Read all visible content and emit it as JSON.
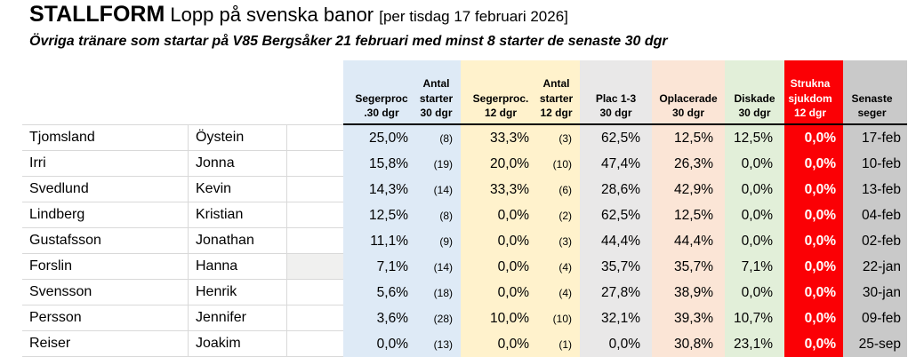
{
  "title": {
    "brand": "STALLFORM",
    "main": " Lopp på svenska banor ",
    "bracket": "[per tisdag 17 februari 2026]"
  },
  "subtitle": "Övriga tränare som startar på V85 Bergsåker 21 februari med minst 8 starter de senaste 30 dgr",
  "colors": {
    "blue": "#DEEAF6",
    "yellow": "#FFF2CC",
    "gray-light": "#E9E8E8",
    "peach": "#FBE5D6",
    "green": "#E2EFD9",
    "red": "#FB0005",
    "gray-dark": "#C9C9C9",
    "grid": "#D9D9D9",
    "shaded": "#F0F0EF"
  },
  "table": {
    "headers": {
      "seg30": "Segerproc\n.30 dgr",
      "st30": "Antal\nstarter\n30 dgr",
      "seg12": "Segerproc.\n12 dgr",
      "st12": "Antal\nstarter\n12 dgr",
      "plac": "Plac 1-3\n30 dgr",
      "opl": "Oplacerade\n30 dgr",
      "disk": "Diskade\n30 dgr",
      "struk": "Strukna\nsjukdom\n12 dgr",
      "senaste": "Senaste\nseger"
    },
    "shaded_row": 5,
    "rows": [
      {
        "last": "Tjomsland",
        "first": "Öystein",
        "seg30": "25,0%",
        "st30": "(8)",
        "seg12": "33,3%",
        "st12": "(3)",
        "plac": "62,5%",
        "opl": "12,5%",
        "disk": "12,5%",
        "struk": "0,0%",
        "senaste": "17-feb"
      },
      {
        "last": "Irri",
        "first": "Jonna",
        "seg30": "15,8%",
        "st30": "(19)",
        "seg12": "20,0%",
        "st12": "(10)",
        "plac": "47,4%",
        "opl": "26,3%",
        "disk": "0,0%",
        "struk": "0,0%",
        "senaste": "10-feb"
      },
      {
        "last": "Svedlund",
        "first": "Kevin",
        "seg30": "14,3%",
        "st30": "(14)",
        "seg12": "33,3%",
        "st12": "(6)",
        "plac": "28,6%",
        "opl": "42,9%",
        "disk": "0,0%",
        "struk": "0,0%",
        "senaste": "13-feb"
      },
      {
        "last": "Lindberg",
        "first": "Kristian",
        "seg30": "12,5%",
        "st30": "(8)",
        "seg12": "0,0%",
        "st12": "(2)",
        "plac": "62,5%",
        "opl": "12,5%",
        "disk": "0,0%",
        "struk": "0,0%",
        "senaste": "04-feb"
      },
      {
        "last": "Gustafsson",
        "first": "Jonathan",
        "seg30": "11,1%",
        "st30": "(9)",
        "seg12": "0,0%",
        "st12": "(3)",
        "plac": "44,4%",
        "opl": "44,4%",
        "disk": "0,0%",
        "struk": "0,0%",
        "senaste": "02-feb"
      },
      {
        "last": "Forslin",
        "first": "Hanna",
        "seg30": "7,1%",
        "st30": "(14)",
        "seg12": "0,0%",
        "st12": "(4)",
        "plac": "35,7%",
        "opl": "35,7%",
        "disk": "7,1%",
        "struk": "0,0%",
        "senaste": "22-jan"
      },
      {
        "last": "Svensson",
        "first": "Henrik",
        "seg30": "5,6%",
        "st30": "(18)",
        "seg12": "0,0%",
        "st12": "(4)",
        "plac": "27,8%",
        "opl": "38,9%",
        "disk": "0,0%",
        "struk": "0,0%",
        "senaste": "30-jan"
      },
      {
        "last": "Persson",
        "first": "Jennifer",
        "seg30": "3,6%",
        "st30": "(28)",
        "seg12": "10,0%",
        "st12": "(10)",
        "plac": "32,1%",
        "opl": "39,3%",
        "disk": "10,7%",
        "struk": "0,0%",
        "senaste": "09-feb"
      },
      {
        "last": "Reiser",
        "first": "Joakim",
        "seg30": "0,0%",
        "st30": "(13)",
        "seg12": "0,0%",
        "st12": "(1)",
        "plac": "0,0%",
        "opl": "30,8%",
        "disk": "23,1%",
        "struk": "0,0%",
        "senaste": "25-sep"
      }
    ]
  }
}
